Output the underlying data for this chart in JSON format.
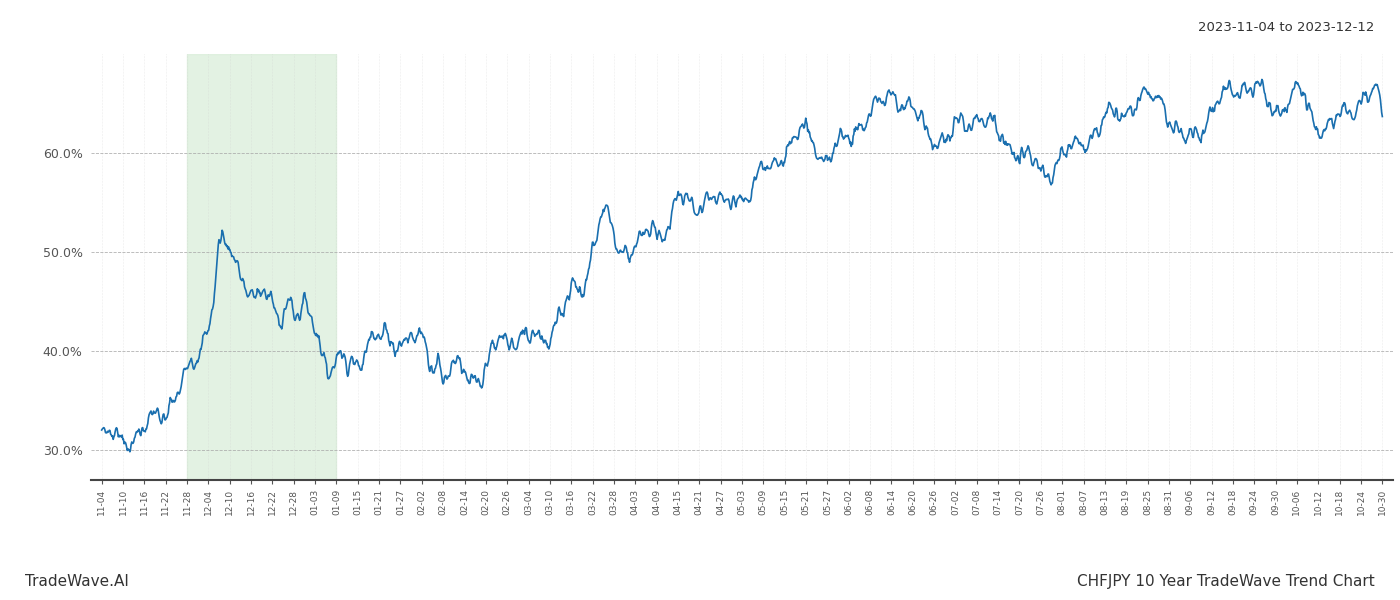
{
  "title_top_right": "2023-11-04 to 2023-12-12",
  "title_bottom_right": "CHFJPY 10 Year TradeWave Trend Chart",
  "title_bottom_left": "TradeWave.AI",
  "line_color": "#1a6faf",
  "background_color": "#ffffff",
  "highlight_color": "#d8edd8",
  "highlight_alpha": 0.7,
  "highlight_xstart": 4,
  "highlight_xend": 11,
  "ylim": [
    0.27,
    0.7
  ],
  "yticks": [
    0.3,
    0.4,
    0.5,
    0.6
  ],
  "x_labels": [
    "11-04",
    "11-10",
    "11-16",
    "11-22",
    "11-28",
    "12-04",
    "12-10",
    "12-16",
    "12-22",
    "12-28",
    "01-03",
    "01-09",
    "01-15",
    "01-21",
    "01-27",
    "02-02",
    "02-08",
    "02-14",
    "02-20",
    "02-26",
    "03-04",
    "03-10",
    "03-16",
    "03-22",
    "03-28",
    "04-03",
    "04-09",
    "04-15",
    "04-21",
    "04-27",
    "05-03",
    "05-09",
    "05-15",
    "05-21",
    "05-27",
    "06-02",
    "06-08",
    "06-14",
    "06-20",
    "06-26",
    "07-02",
    "07-08",
    "07-14",
    "07-20",
    "07-26",
    "08-01",
    "08-07",
    "08-13",
    "08-19",
    "08-25",
    "08-31",
    "09-06",
    "09-12",
    "09-18",
    "09-24",
    "09-30",
    "10-06",
    "10-12",
    "10-18",
    "10-24",
    "10-30"
  ],
  "seed": 7
}
